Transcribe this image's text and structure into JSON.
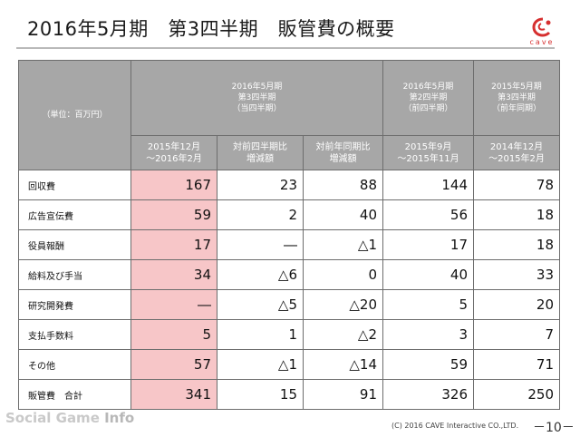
{
  "title": "2016年5月期　第3四半期　販管費の概要",
  "logo": {
    "wordmark": "cave",
    "icon": "cave-logo-icon",
    "color": "#d62f2f"
  },
  "table": {
    "unit_label": "（単位：百万円）",
    "group_current": {
      "line1": "2016年5月期",
      "line2": "第3四半期",
      "line3": "（当四半期）"
    },
    "sub_headers": {
      "period": {
        "line1": "2015年12月",
        "line2": "～2016年2月"
      },
      "qoq": {
        "line1": "対前四半期比",
        "line2": "増減額"
      },
      "yoy": {
        "line1": "対前年同期比",
        "line2": "増減額"
      }
    },
    "group_prev_quarter": {
      "line1": "2016年5月期",
      "line2": "第2四半期",
      "line3": "（前四半期）",
      "period_line1": "2015年9月",
      "period_line2": "～2015年11月"
    },
    "group_prev_year": {
      "line1": "2015年5月期",
      "line2": "第3四半期",
      "line3": "（前年同期）",
      "period_line1": "2014年12月",
      "period_line2": "～2015年2月"
    },
    "rows": [
      {
        "label": "回収費",
        "current": "167",
        "qoq": "23",
        "yoy": "88",
        "prev_q": "144",
        "prev_y": "78"
      },
      {
        "label": "広告宣伝費",
        "current": "59",
        "qoq": "2",
        "yoy": "40",
        "prev_q": "56",
        "prev_y": "18"
      },
      {
        "label": "役員報酬",
        "current": "17",
        "qoq": "―",
        "yoy": "△1",
        "prev_q": "17",
        "prev_y": "18"
      },
      {
        "label": "給料及び手当",
        "current": "34",
        "qoq": "△6",
        "yoy": "0",
        "prev_q": "40",
        "prev_y": "33"
      },
      {
        "label": "研究開発費",
        "current": "―",
        "qoq": "△5",
        "yoy": "△20",
        "prev_q": "5",
        "prev_y": "20"
      },
      {
        "label": "支払手数料",
        "current": "5",
        "qoq": "1",
        "yoy": "△2",
        "prev_q": "3",
        "prev_y": "7"
      },
      {
        "label": "その他",
        "current": "57",
        "qoq": "△1",
        "yoy": "△14",
        "prev_q": "59",
        "prev_y": "71"
      },
      {
        "label": "販管費　合計",
        "current": "341",
        "qoq": "15",
        "yoy": "91",
        "prev_q": "326",
        "prev_y": "250"
      }
    ]
  },
  "watermark": {
    "part1": "Social Game ",
    "part2": "Info"
  },
  "copyright": "(C) 2016 CAVE Interactive CO.,LTD.",
  "page_number": "－10－"
}
